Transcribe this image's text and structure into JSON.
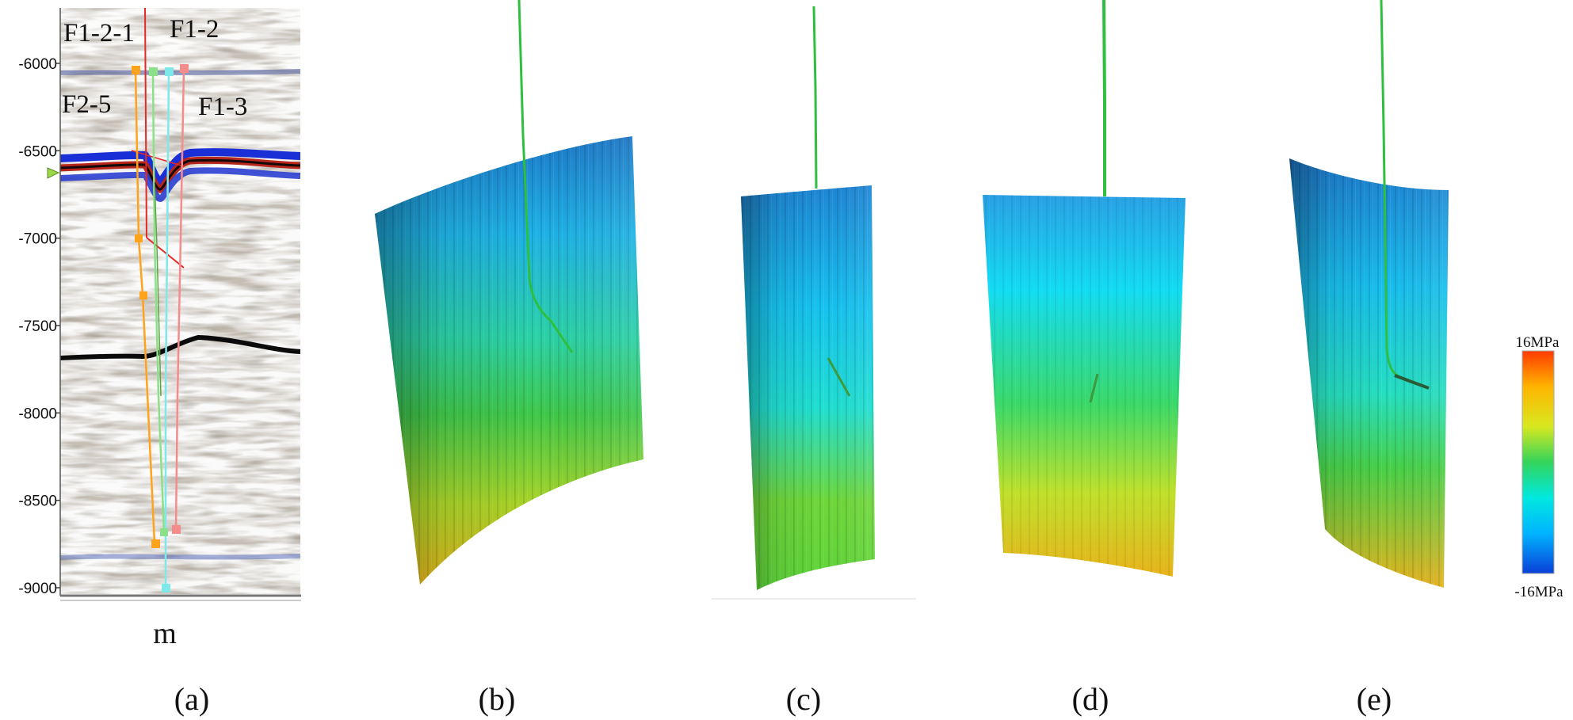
{
  "panel_a": {
    "depth_axis": {
      "min": -9000,
      "max": -5700,
      "ticks": [
        -6000,
        -6500,
        -7000,
        -7500,
        -8000,
        -8500,
        -9000
      ],
      "tick_labels": [
        "-6000",
        "-6500",
        "-7000",
        "-7500",
        "-8000",
        "-8500",
        "-9000"
      ],
      "unit_label": "m"
    },
    "fault_labels": [
      "F1-2-1",
      "F1-2",
      "F2-5",
      "F1-3"
    ]
  },
  "colorbar": {
    "max_label": "16MPa",
    "min_label": "-16MPa",
    "colors": [
      "#0a3fd8",
      "#00b4ff",
      "#00e8e0",
      "#33d45a",
      "#d7e820",
      "#ffb400",
      "#ff3a00"
    ]
  },
  "captions": [
    "(a)",
    "(b)",
    "(c)",
    "(d)",
    "(e)"
  ],
  "colors": {
    "well_path": "#2fbf3f",
    "horizon": "#111111",
    "fault_orange": "#ffa21c",
    "fault_green": "#8de08a",
    "fault_cyan": "#7fe9ea",
    "fault_pink": "#f58c8c",
    "fault_red": "#e02b2b"
  }
}
